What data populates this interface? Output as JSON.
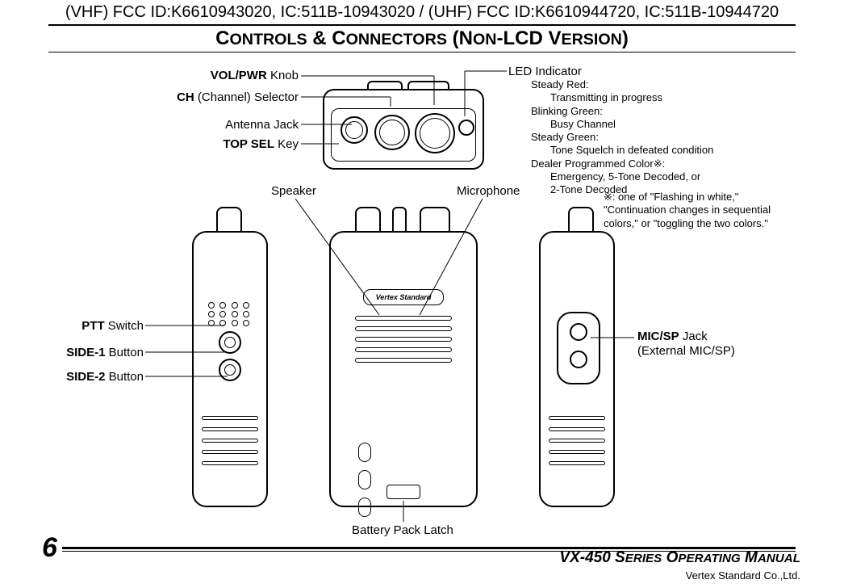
{
  "header": {
    "fcc": "(VHF) FCC ID:K6610943020, IC:511B-10943020 / (UHF) FCC ID:K6610944720, IC:511B-10944720",
    "section_title_html": "C<span style='font-size:0.82em'>ONTROLS</span> & C<span style='font-size:0.82em'>ONNECTORS</span> (N<span style='font-size:0.82em'>ON</span>-LCD V<span style='font-size:0.82em'>ERSION</span>)"
  },
  "top_labels": {
    "vol_pwr": "<b>VOL/PWR</b> Knob",
    "ch_sel": "<b>CH</b> (Channel) Selector",
    "antenna": "Antenna Jack",
    "top_sel": "<b>TOP SEL</b> Key",
    "speaker": "Speaker",
    "microphone": "Microphone"
  },
  "led": {
    "title": "LED Indicator",
    "rows": [
      {
        "k": "Steady Red:",
        "v": "Transmitting in progress"
      },
      {
        "k": "Blinking Green:",
        "v": "Busy Channel"
      },
      {
        "k": "Steady Green:",
        "v": "Tone Squelch in defeated condition"
      },
      {
        "k": "Dealer Programmed Color※:",
        "v": "Emergency, 5-Tone Decoded, or"
      },
      {
        "k": "",
        "v": " 2-Tone Decoded"
      }
    ]
  },
  "note": {
    "mark": "※:",
    "text": "one of \"Flashing in white,\" \"Continuation changes in sequential colors,\" or \"toggling the two colors.\""
  },
  "side_labels": {
    "ptt": "<b>PTT</b> Switch",
    "side1": "<b>SIDE-1</b> Button",
    "side2": "<b>SIDE-2</b> Button",
    "micsp": "<b>MIC/SP</b> Jack",
    "micsp_sub": "(External MIC/SP)",
    "battery": "Battery Pack Latch"
  },
  "front": {
    "brand": "Vertex Standard"
  },
  "footer": {
    "page": "6",
    "manual": "VX-450 S<span style='font-size:0.8em'>ERIES</span> O<span style='font-size:0.8em'>PERATING</span> M<span style='font-size:0.8em'>ANUAL</span>",
    "company": "Vertex Standard Co.,Ltd."
  }
}
